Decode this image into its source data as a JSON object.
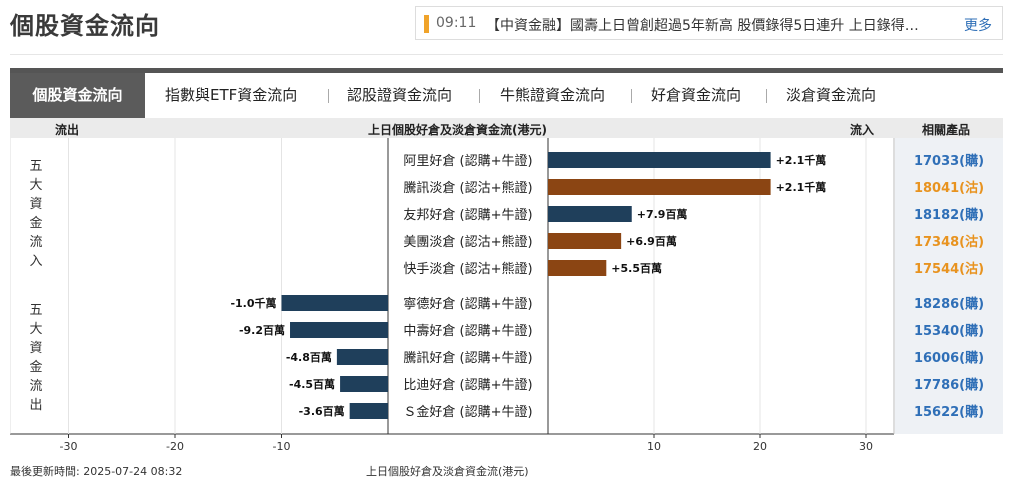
{
  "page_title": "個股資金流向",
  "ticker": {
    "time": "09:11",
    "headline": "【中資金融】國壽上日曾創超過5年新高 股價錄得5日連升 上日錄得…",
    "more_label": "更多"
  },
  "tabs": [
    {
      "label": "個股資金流向",
      "active": true
    },
    {
      "label": "指數與ETF資金流向",
      "active": false
    },
    {
      "label": "認股證資金流向",
      "active": false
    },
    {
      "label": "牛熊證資金流向",
      "active": false
    },
    {
      "label": "好倉資金流向",
      "active": false
    },
    {
      "label": "淡倉資金流向",
      "active": false
    }
  ],
  "table_header": {
    "outflow": "流出",
    "center": "上日個股好倉及淡倉資金流(港元)",
    "inflow": "流入",
    "related": "相關產品"
  },
  "groups": {
    "inflow_label": "五大資金流入",
    "outflow_label": "五大資金流出"
  },
  "colors": {
    "long": "#1f3f5b",
    "short": "#8b4513",
    "call_link": "#2f6fb7",
    "put_link": "#e8931f"
  },
  "chart_data": {
    "type": "bar",
    "orientation": "horizontal",
    "xlim": [
      -30,
      30
    ],
    "x_ticks": [
      -30,
      -20,
      -10,
      10,
      20,
      30
    ],
    "unit": "百萬",
    "rows": [
      {
        "label": "阿里好倉 (認購+牛證)",
        "value": 21,
        "value_label": "+2.1千萬",
        "side": "long",
        "product": "17033(購)",
        "product_type": "call"
      },
      {
        "label": "騰訊淡倉 (認沽+熊證)",
        "value": 21,
        "value_label": "+2.1千萬",
        "side": "short",
        "product": "18041(沽)",
        "product_type": "put"
      },
      {
        "label": "友邦好倉 (認購+牛證)",
        "value": 7.9,
        "value_label": "+7.9百萬",
        "side": "long",
        "product": "18182(購)",
        "product_type": "call"
      },
      {
        "label": "美團淡倉 (認沽+熊證)",
        "value": 6.9,
        "value_label": "+6.9百萬",
        "side": "short",
        "product": "17348(沽)",
        "product_type": "put"
      },
      {
        "label": "快手淡倉 (認沽+熊證)",
        "value": 5.5,
        "value_label": "+5.5百萬",
        "side": "short",
        "product": "17544(沽)",
        "product_type": "put"
      },
      {
        "label": "寧德好倉 (認購+牛證)",
        "value": -10,
        "value_label": "-1.0千萬",
        "side": "long",
        "product": "18286(購)",
        "product_type": "call"
      },
      {
        "label": "中壽好倉 (認購+牛證)",
        "value": -9.2,
        "value_label": "-9.2百萬",
        "side": "long",
        "product": "15340(購)",
        "product_type": "call"
      },
      {
        "label": "騰訊好倉 (認購+牛證)",
        "value": -4.8,
        "value_label": "-4.8百萬",
        "side": "long",
        "product": "16006(購)",
        "product_type": "call"
      },
      {
        "label": "比迪好倉 (認購+牛證)",
        "value": -4.5,
        "value_label": "-4.5百萬",
        "side": "long",
        "product": "17786(購)",
        "product_type": "call"
      },
      {
        "label": "Ｓ金好倉 (認購+牛證)",
        "value": -3.6,
        "value_label": "-3.6百萬",
        "side": "long",
        "product": "15622(購)",
        "product_type": "call"
      }
    ]
  },
  "footer": {
    "updated": "最後更新時間: 2025-07-24 08:32",
    "caption": "上日個股好倉及淡倉資金流(港元)"
  }
}
